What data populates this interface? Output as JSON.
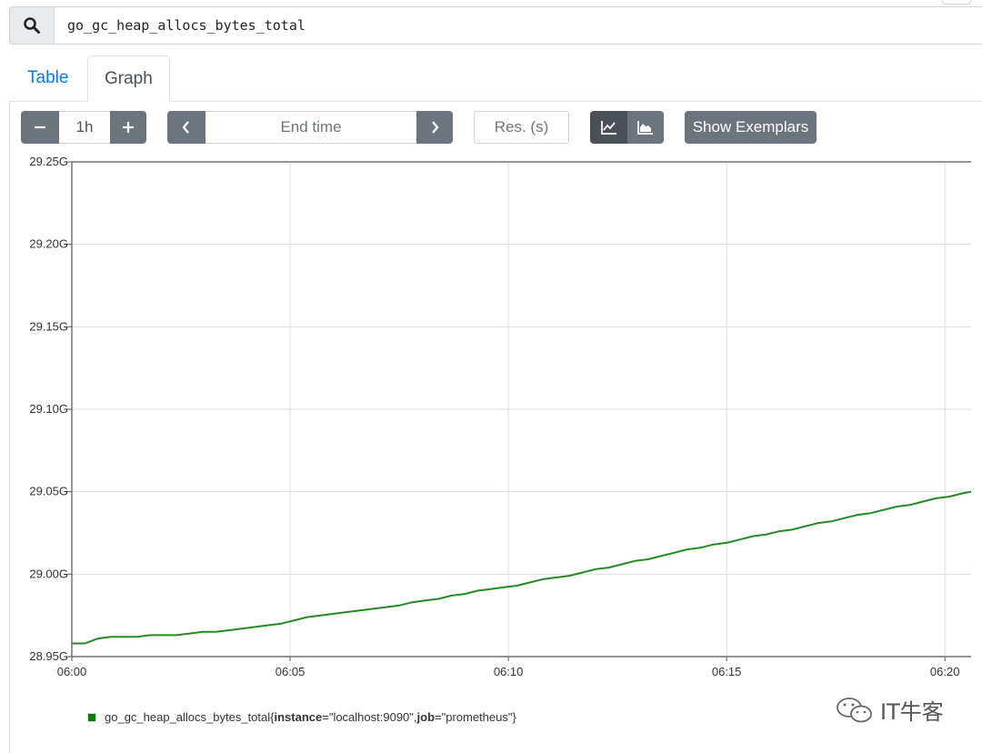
{
  "query": {
    "value": "go_gc_heap_allocs_bytes_total",
    "search_icon": "magnifier-icon"
  },
  "tabs": [
    {
      "label": "Table",
      "active": false
    },
    {
      "label": "Graph",
      "active": true
    }
  ],
  "controls": {
    "range_minus": "−",
    "range_value": "1h",
    "range_plus": "+",
    "end_prev": "‹",
    "end_time_placeholder": "End time",
    "end_next": "›",
    "resolution_placeholder": "Res. (s)",
    "line_chart_icon": "line-chart-icon",
    "stacked_chart_icon": "stacked-area-chart-icon",
    "exemplars_label": "Show Exemplars"
  },
  "chart_data": {
    "type": "line",
    "title": "",
    "xlabel": "",
    "ylabel": "",
    "x_ticks": [
      "06:00",
      "06:05",
      "06:10",
      "06:15",
      "06:20"
    ],
    "y_ticks": [
      "28.95G",
      "29.00G",
      "29.05G",
      "29.10G",
      "29.15G",
      "29.20G",
      "29.25G"
    ],
    "ylim": [
      28.95,
      29.25
    ],
    "xlim": [
      0,
      20.6
    ],
    "x_unit": "minutes after 06:00",
    "grid": true,
    "color": "#228b22",
    "series": [
      {
        "name": "go_gc_heap_allocs_bytes_total{instance=\"localhost:9090\", job=\"prometheus\"}",
        "x": [
          0,
          0.3,
          0.6,
          0.9,
          1.2,
          1.5,
          1.8,
          2.1,
          2.4,
          2.7,
          3.0,
          3.3,
          3.6,
          3.9,
          4.2,
          4.5,
          4.8,
          5.1,
          5.4,
          5.7,
          6.0,
          6.3,
          6.6,
          6.9,
          7.2,
          7.5,
          7.8,
          8.1,
          8.4,
          8.7,
          9.0,
          9.3,
          9.6,
          9.9,
          10.2,
          10.5,
          10.8,
          11.1,
          11.4,
          11.7,
          12.0,
          12.3,
          12.6,
          12.9,
          13.2,
          13.5,
          13.8,
          14.1,
          14.4,
          14.7,
          15.0,
          15.3,
          15.6,
          15.9,
          16.2,
          16.5,
          16.8,
          17.1,
          17.4,
          17.7,
          18.0,
          18.3,
          18.6,
          18.9,
          19.2,
          19.5,
          19.8,
          20.1,
          20.4,
          20.6
        ],
        "y": [
          28.958,
          28.958,
          28.961,
          28.962,
          28.962,
          28.962,
          28.963,
          28.963,
          28.963,
          28.964,
          28.965,
          28.965,
          28.966,
          28.967,
          28.968,
          28.969,
          28.97,
          28.972,
          28.974,
          28.975,
          28.976,
          28.977,
          28.978,
          28.979,
          28.98,
          28.981,
          28.983,
          28.984,
          28.985,
          28.987,
          28.988,
          28.99,
          28.991,
          28.992,
          28.993,
          28.995,
          28.997,
          28.998,
          28.999,
          29.001,
          29.003,
          29.004,
          29.006,
          29.008,
          29.009,
          29.011,
          29.013,
          29.015,
          29.016,
          29.018,
          29.019,
          29.021,
          29.023,
          29.024,
          29.026,
          29.027,
          29.029,
          29.031,
          29.032,
          29.034,
          29.036,
          29.037,
          29.039,
          29.041,
          29.042,
          29.044,
          29.046,
          29.047,
          29.049,
          29.05
        ]
      }
    ]
  },
  "legend": {
    "metric": "go_gc_heap_allocs_bytes_total{",
    "label1_key": "instance",
    "label1_val": "=\"localhost:9090\", ",
    "label2_key": "job",
    "label2_val": "=\"prometheus\"}"
  },
  "watermark": {
    "text": "IT牛客",
    "icon": "wechat-icon"
  }
}
